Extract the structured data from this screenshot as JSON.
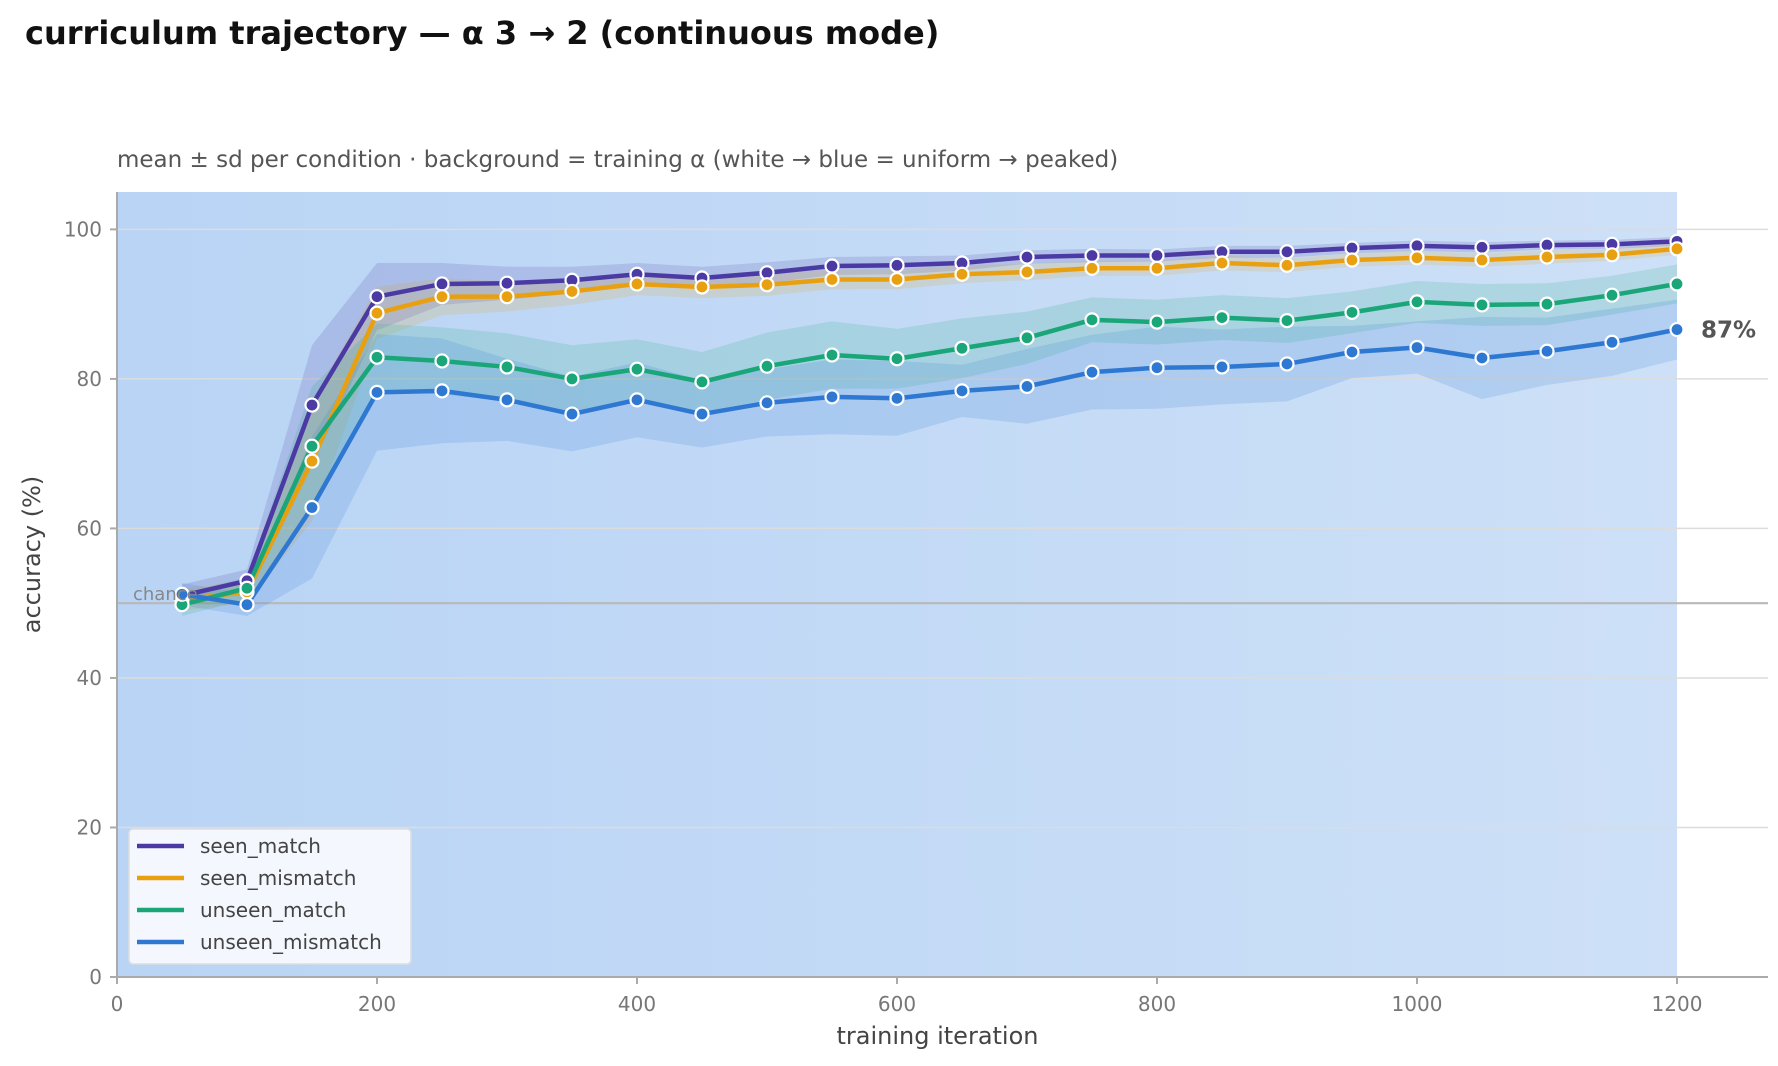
{
  "title": "curriculum trajectory — α 3 → 2 (continuous mode)",
  "chart_data": {
    "type": "line",
    "subtitle": "mean ± sd per condition · background = training α (white → blue = uniform → peaked)",
    "xlabel": "training iteration",
    "ylabel": "accuracy (%)",
    "xlim": [
      0,
      1270
    ],
    "ylim": [
      0,
      105
    ],
    "xticks": [
      0,
      200,
      400,
      600,
      800,
      1000,
      1200
    ],
    "yticks": [
      0,
      20,
      40,
      60,
      80,
      100
    ],
    "grid": "horizontal",
    "legend_position": "bottom-left",
    "chance": {
      "value": 50,
      "label": "chance"
    },
    "background": {
      "x_start": 0,
      "x_end": 1200,
      "color_start": "#b9d4f5",
      "color_end": "#cde0f7"
    },
    "end_label": "87%",
    "x": [
      50,
      100,
      150,
      200,
      250,
      300,
      350,
      400,
      450,
      500,
      550,
      600,
      650,
      700,
      750,
      800,
      850,
      900,
      950,
      1000,
      1050,
      1100,
      1150,
      1200
    ],
    "series": [
      {
        "name": "seen_match",
        "color": "#4b3aa3",
        "values": [
          51.0,
          53.0,
          76.5,
          91.0,
          92.7,
          92.8,
          93.2,
          94.0,
          93.5,
          94.2,
          95.1,
          95.2,
          95.5,
          96.3,
          96.5,
          96.5,
          97.0,
          97.0,
          97.5,
          97.8,
          97.6,
          97.9,
          98.0,
          98.4
        ],
        "sd": [
          1.5,
          1.5,
          8.0,
          4.5,
          2.8,
          2.2,
          1.8,
          1.5,
          1.5,
          1.4,
          1.2,
          1.2,
          1.0,
          0.9,
          0.9,
          0.8,
          0.8,
          0.8,
          0.7,
          0.7,
          0.7,
          0.6,
          0.6,
          0.6
        ]
      },
      {
        "name": "seen_mismatch",
        "color": "#e8a010",
        "values": [
          50.5,
          51.5,
          69.0,
          88.8,
          91.0,
          91.0,
          91.7,
          92.7,
          92.3,
          92.6,
          93.3,
          93.3,
          94.0,
          94.3,
          94.8,
          94.8,
          95.5,
          95.2,
          95.9,
          96.2,
          95.9,
          96.3,
          96.6,
          97.4
        ],
        "sd": [
          1.5,
          1.5,
          8.0,
          3.5,
          2.5,
          2.0,
          1.8,
          1.5,
          1.5,
          1.5,
          1.3,
          1.3,
          1.2,
          1.1,
          1.0,
          1.0,
          1.0,
          0.9,
          0.9,
          0.9,
          0.9,
          0.9,
          0.8,
          0.8
        ]
      },
      {
        "name": "unseen_match",
        "color": "#1aa678",
        "values": [
          49.8,
          52.0,
          71.0,
          82.9,
          82.4,
          81.6,
          80.0,
          81.3,
          79.6,
          81.7,
          83.2,
          82.7,
          84.1,
          85.5,
          87.9,
          87.6,
          88.2,
          87.8,
          88.9,
          90.3,
          89.9,
          90.0,
          91.2,
          92.7
        ],
        "sd": [
          1.5,
          1.5,
          8.0,
          4.5,
          4.5,
          4.5,
          4.5,
          4.0,
          4.0,
          4.5,
          4.5,
          4.0,
          4.0,
          3.5,
          3.0,
          3.0,
          3.0,
          3.0,
          2.8,
          2.8,
          2.8,
          2.8,
          2.6,
          2.6
        ]
      },
      {
        "name": "unseen_mismatch",
        "color": "#2e78d2",
        "values": [
          51.2,
          49.8,
          62.8,
          78.2,
          78.4,
          77.2,
          75.3,
          77.2,
          75.3,
          76.8,
          77.6,
          77.4,
          78.4,
          79.0,
          80.9,
          81.5,
          81.6,
          82.0,
          83.6,
          84.2,
          82.8,
          83.7,
          84.9,
          86.6
        ],
        "sd": [
          1.5,
          1.5,
          9.5,
          7.8,
          7.0,
          5.5,
          5.0,
          5.0,
          4.5,
          4.5,
          5.0,
          5.0,
          3.5,
          5.0,
          5.0,
          5.5,
          5.0,
          5.0,
          3.5,
          3.5,
          5.5,
          4.5,
          4.5,
          4.0
        ]
      }
    ]
  }
}
